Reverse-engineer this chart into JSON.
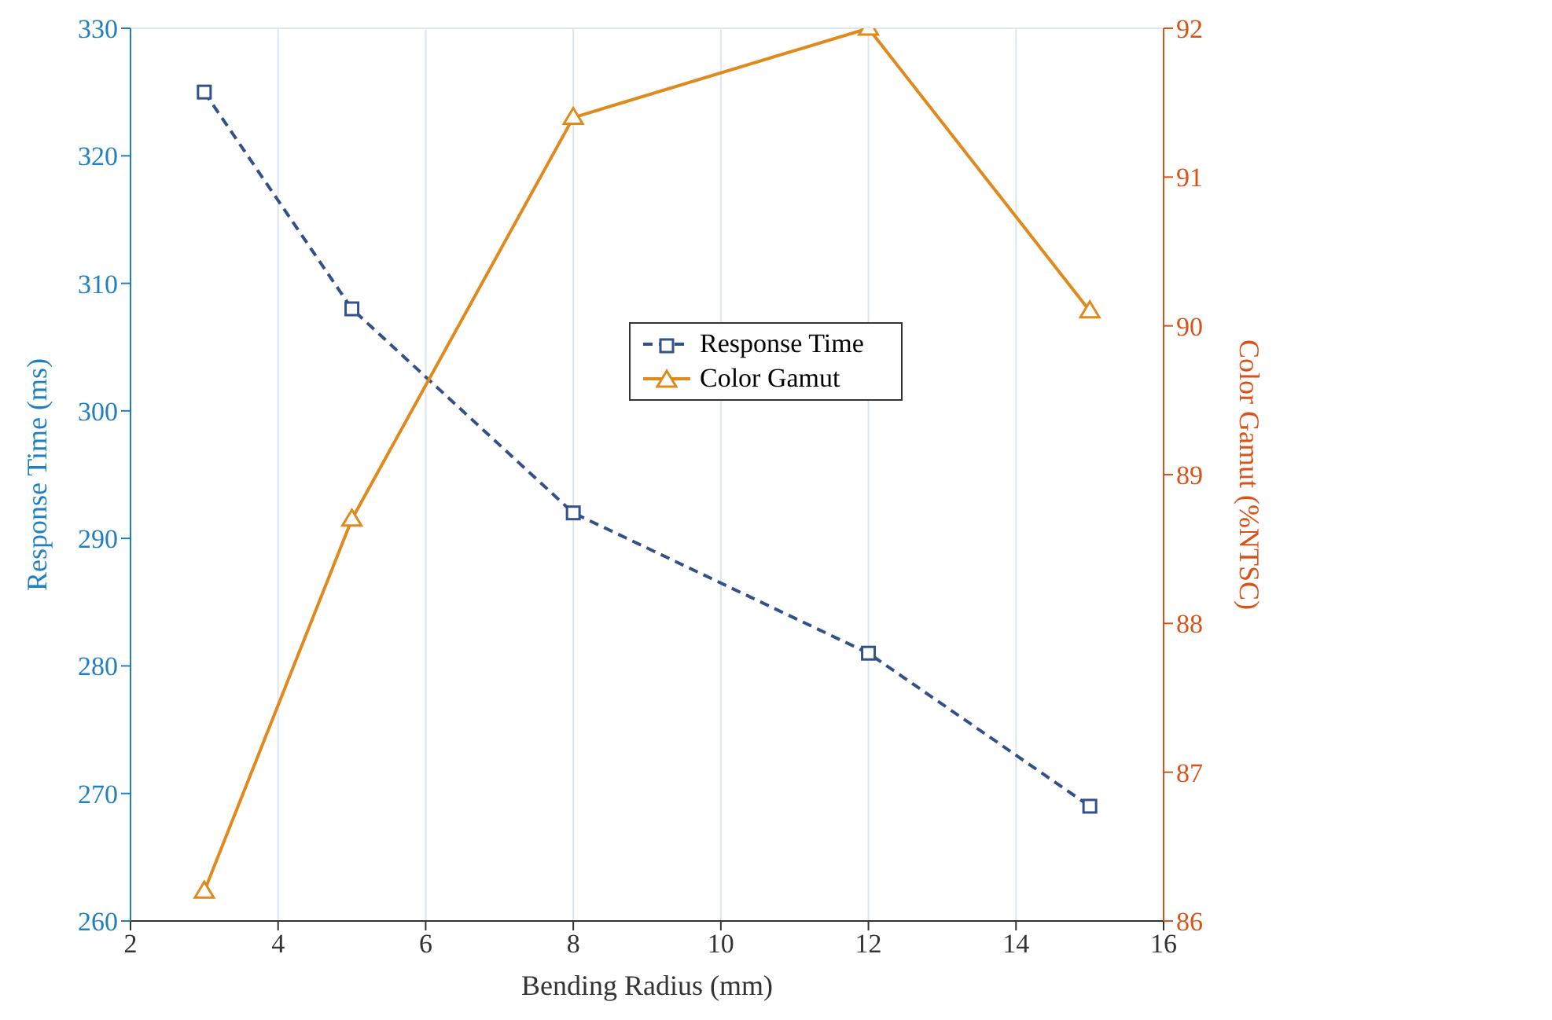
{
  "chart_data": {
    "type": "line",
    "xlabel": "Bending Radius (mm)",
    "ylabel": "Response Time (ms)",
    "y2label": "Color Gamut (%NTSC)",
    "x": [
      3,
      5,
      8,
      12,
      15
    ],
    "series": [
      {
        "name": "Response Time",
        "color": "#34508a",
        "values": [
          325,
          308,
          292,
          281,
          269
        ],
        "marker": "square",
        "line_style": "dashed"
      },
      {
        "name": "Color Gamut",
        "color": "#e0891c",
        "values": [
          86.2,
          88.7,
          91.4,
          92.0,
          90.1
        ],
        "axis": "y2",
        "marker": "triangle",
        "line_style": "solid"
      }
    ],
    "xlim": [
      2,
      16
    ],
    "xticks": [
      2,
      4,
      6,
      8,
      10,
      12,
      14,
      16
    ],
    "ylim": [
      260,
      330
    ],
    "yticks": [
      260,
      270,
      280,
      290,
      300,
      310,
      320,
      330
    ],
    "y2lim": [
      86,
      92
    ],
    "y2ticks": [
      86,
      87,
      88,
      89,
      90,
      91,
      92
    ],
    "grid": true,
    "legend": "right"
  }
}
